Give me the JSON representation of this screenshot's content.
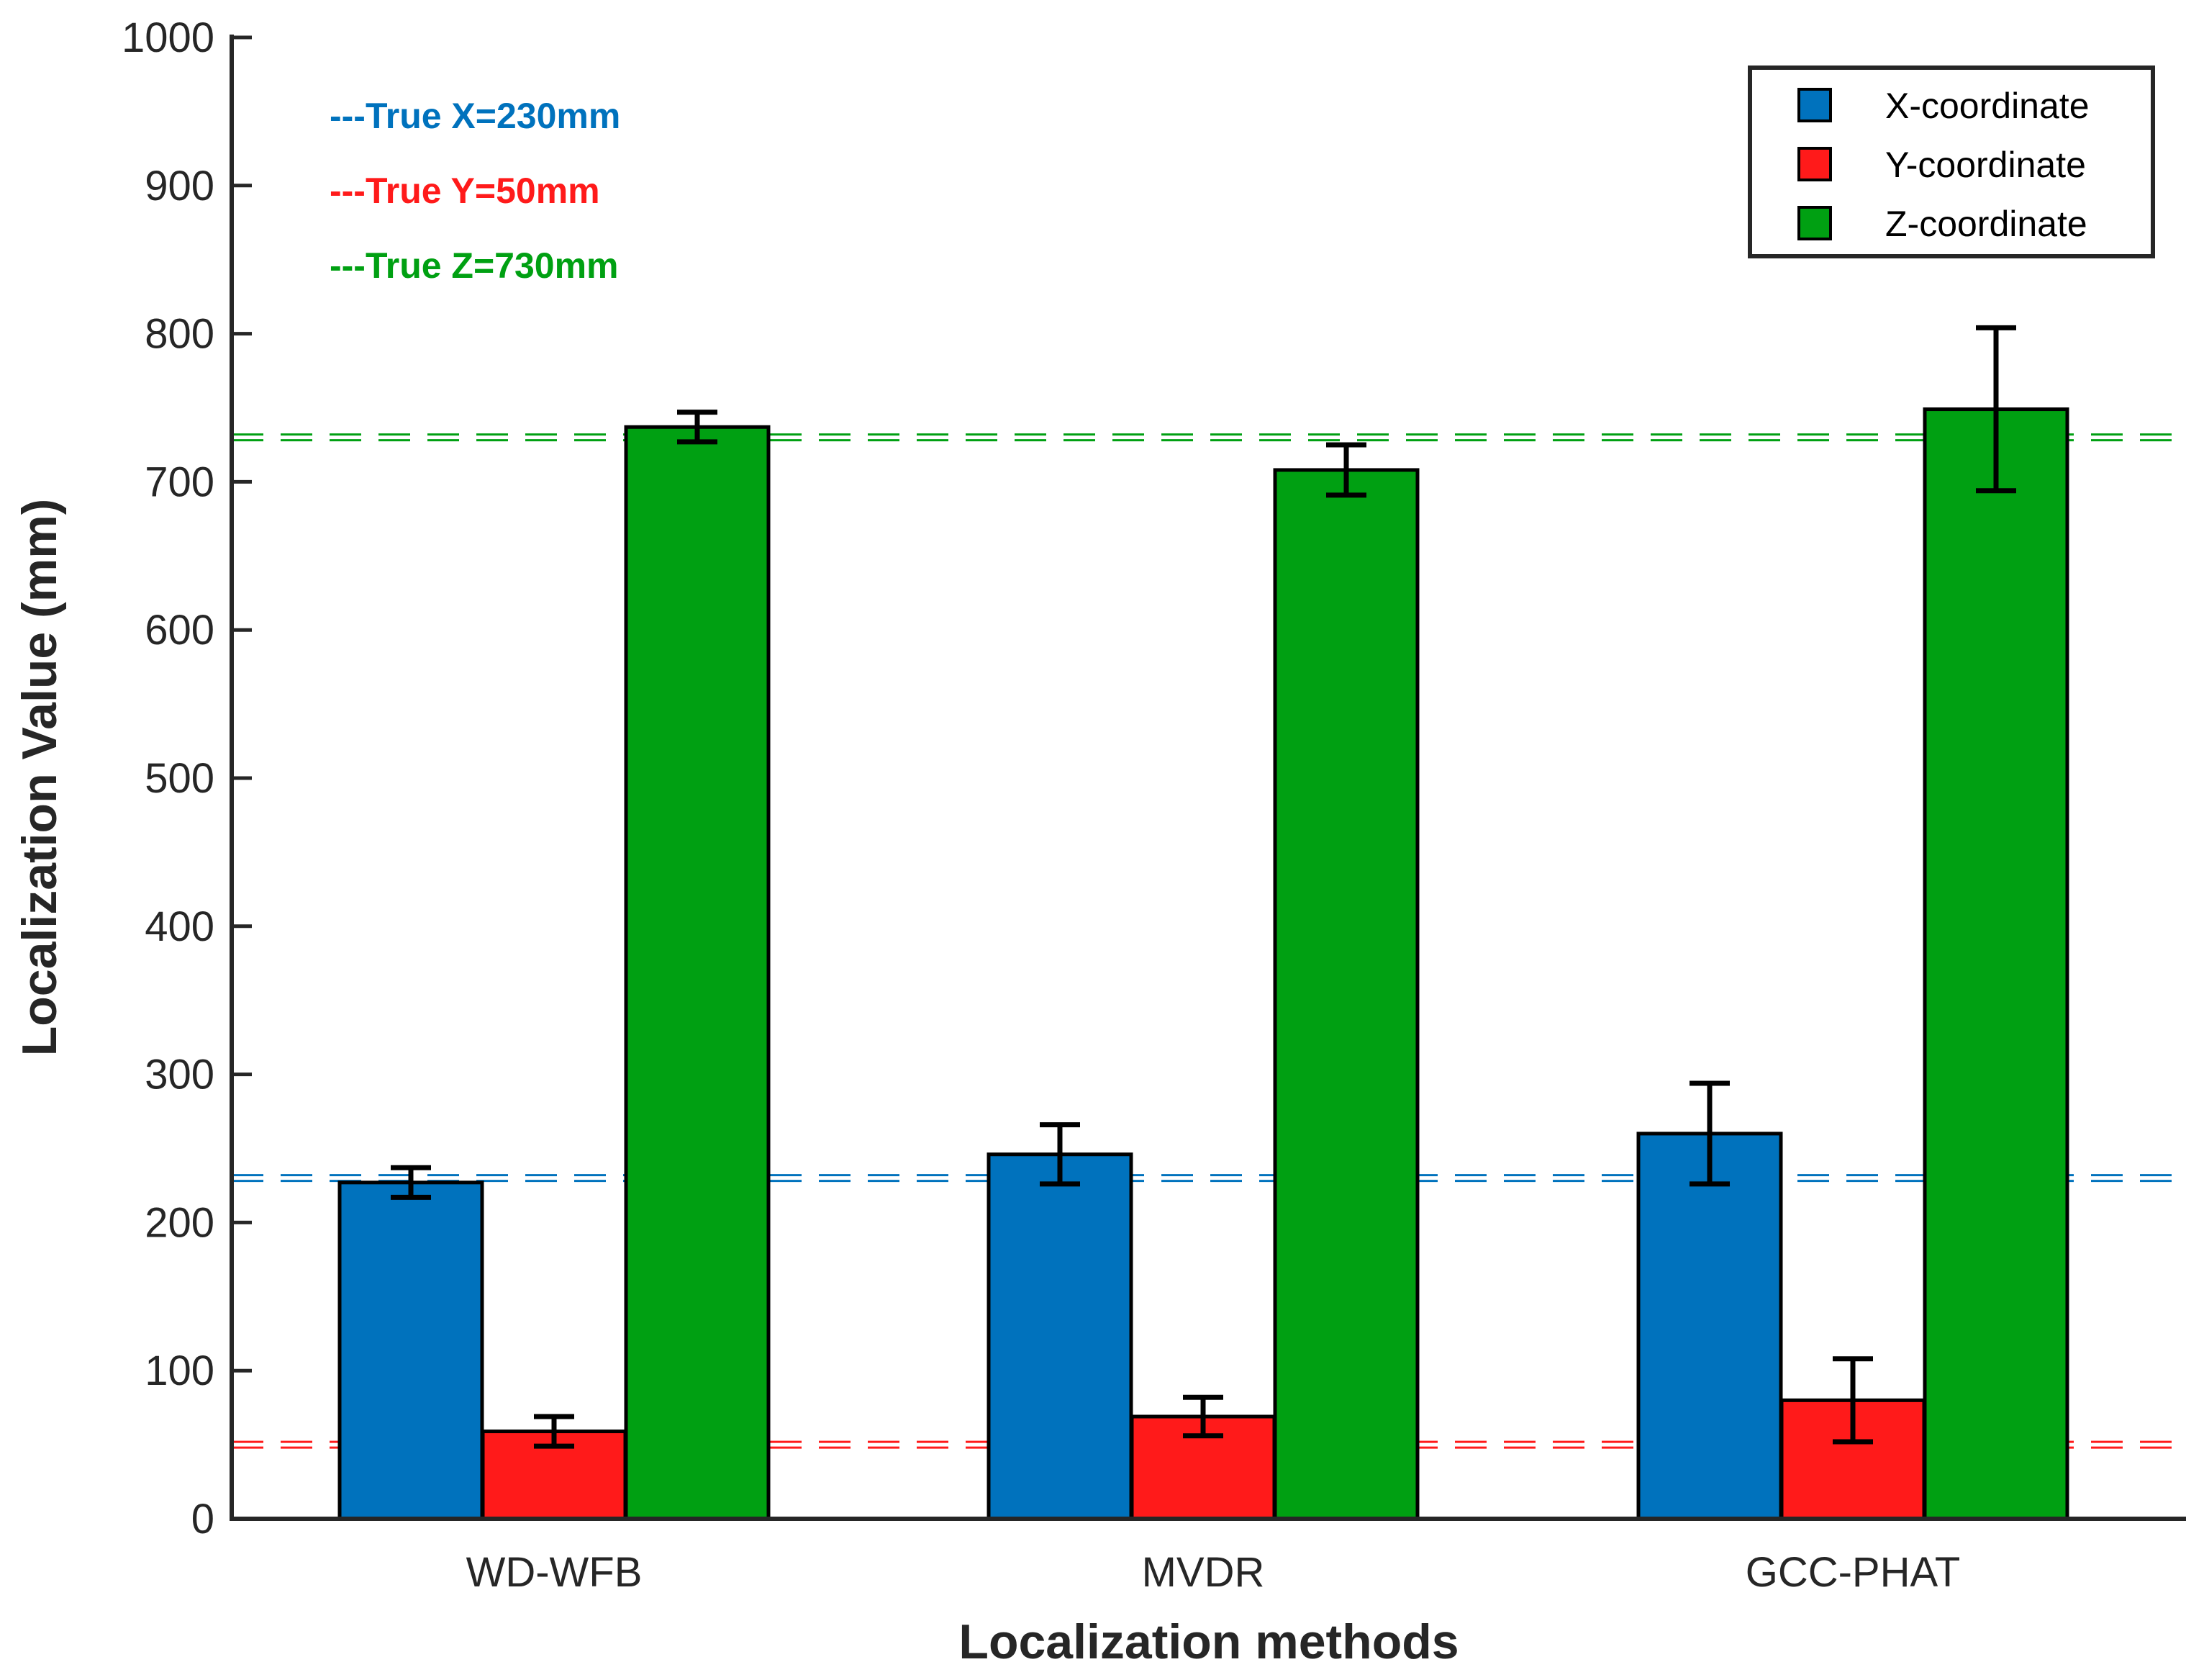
{
  "chart_data": {
    "type": "bar",
    "xlabel": "Localization methods",
    "ylabel": "Localization Value (mm)",
    "ylim": [
      0,
      1000
    ],
    "yticks": [
      0,
      100,
      200,
      300,
      400,
      500,
      600,
      700,
      800,
      900,
      1000
    ],
    "categories": [
      "WD-WFB",
      "MVDR",
      "GCC-PHAT"
    ],
    "series": [
      {
        "name": "X-coordinate",
        "color": "#0072BD",
        "values": [
          227,
          246,
          260
        ],
        "errors": [
          10,
          20,
          34
        ]
      },
      {
        "name": "Y-coordinate",
        "color": "#FF1A1A",
        "values": [
          59,
          69,
          80
        ],
        "errors": [
          10,
          13,
          28
        ]
      },
      {
        "name": "Z-coordinate",
        "color": "#00A012",
        "values": [
          737,
          708,
          749
        ],
        "errors": [
          10,
          17,
          55
        ]
      }
    ],
    "reference_lines": [
      {
        "label": "---True X=230mm",
        "value": 230,
        "color": "#0072BD"
      },
      {
        "label": "---True Y=50mm",
        "value": 50,
        "color": "#FF1A1A"
      },
      {
        "label": "---True Z=730mm",
        "value": 730,
        "color": "#00A012"
      }
    ],
    "legend_position": "top-right",
    "grid": false
  }
}
